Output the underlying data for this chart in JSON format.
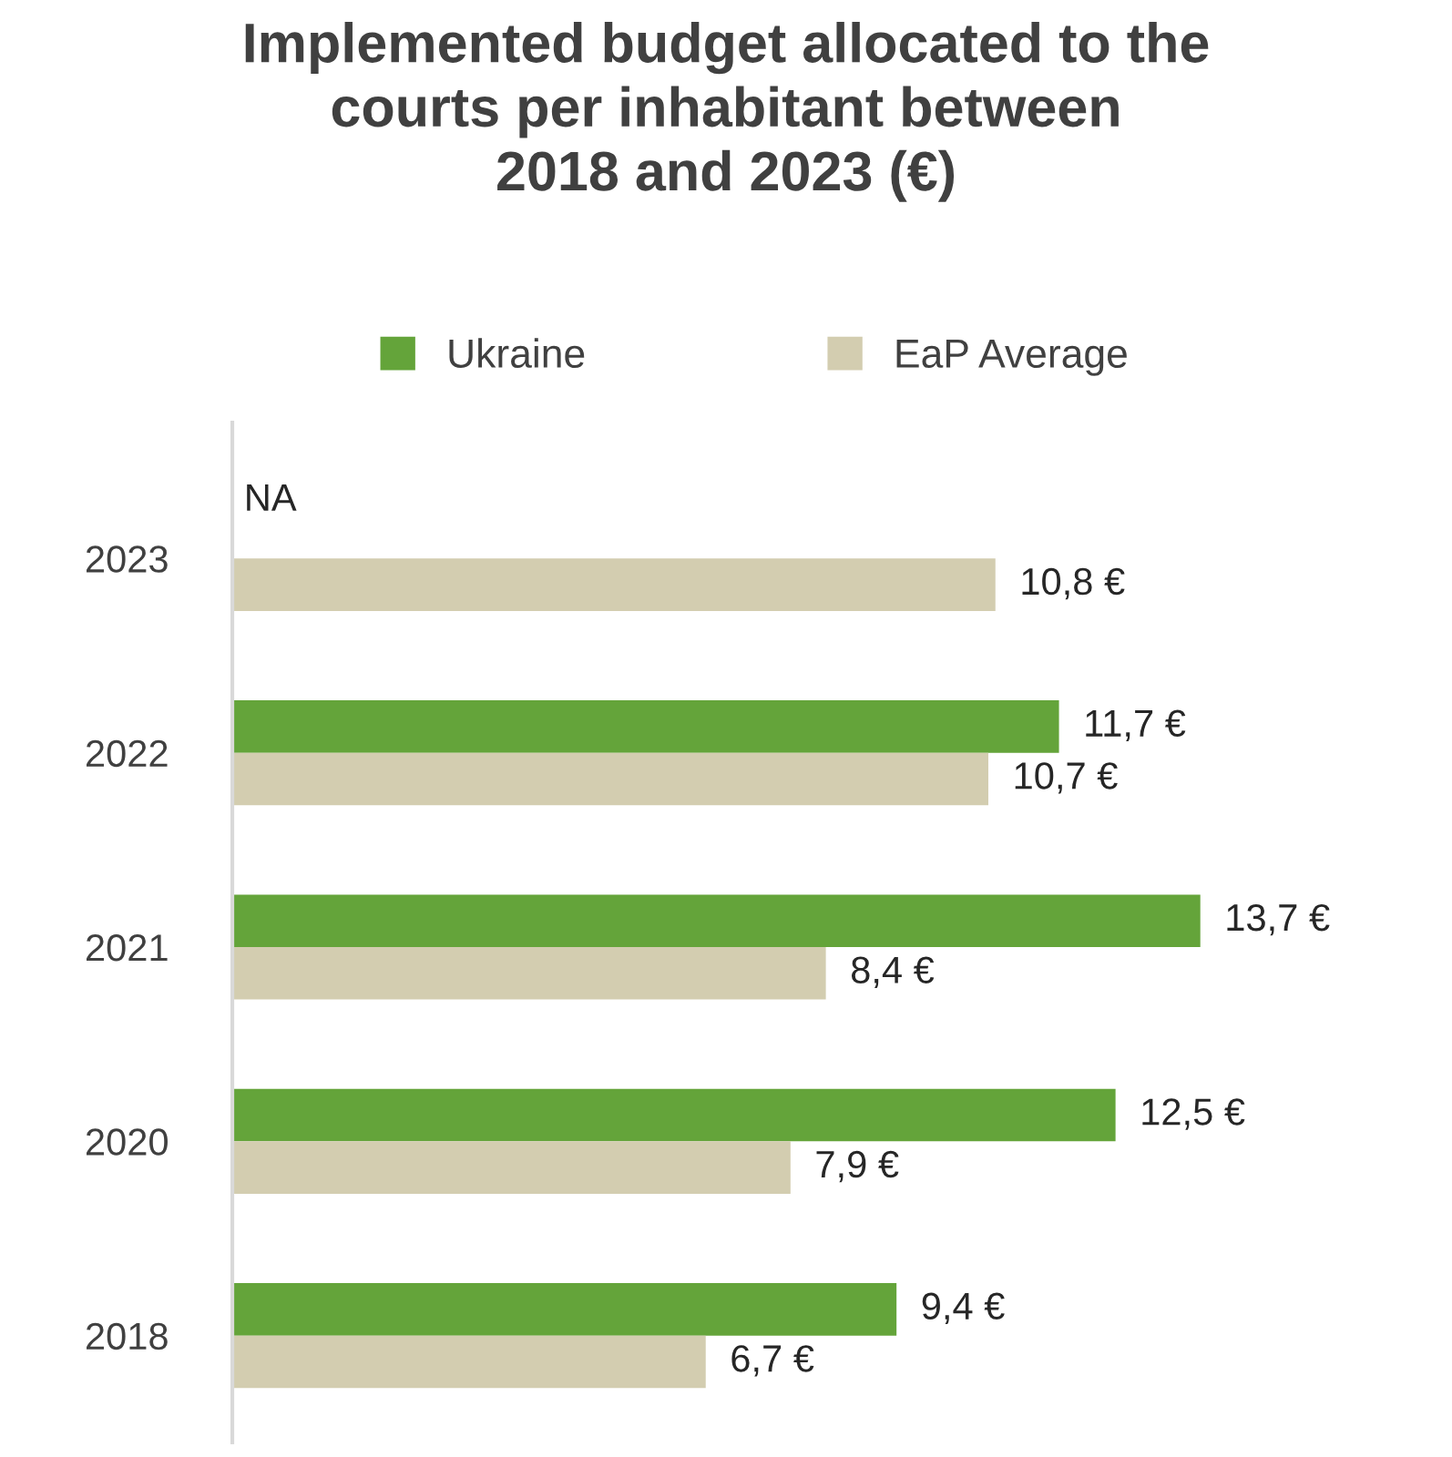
{
  "chart_data": {
    "type": "bar",
    "orientation": "horizontal",
    "title": "Implemented budget allocated to the\ncourts per inhabitant between\n2018 and 2023 (€)",
    "categories": [
      "2023",
      "2022",
      "2021",
      "2020",
      "2018"
    ],
    "series": [
      {
        "name": "Ukraine",
        "color": "#64a43a",
        "values": [
          null,
          11.7,
          13.7,
          12.5,
          9.4
        ],
        "value_labels": [
          "NA",
          "11,7 €",
          "13,7 €",
          "12,5 €",
          "9,4 €"
        ]
      },
      {
        "name": "EaP Average",
        "color": "#d3cdb0",
        "values": [
          10.8,
          10.7,
          8.4,
          7.9,
          6.7
        ],
        "value_labels": [
          "10,8 €",
          "10,7 €",
          "8,4 €",
          "7,9 €",
          "6,7 €"
        ]
      }
    ],
    "legend": "top",
    "grid": false,
    "tick_labels": "y"
  }
}
